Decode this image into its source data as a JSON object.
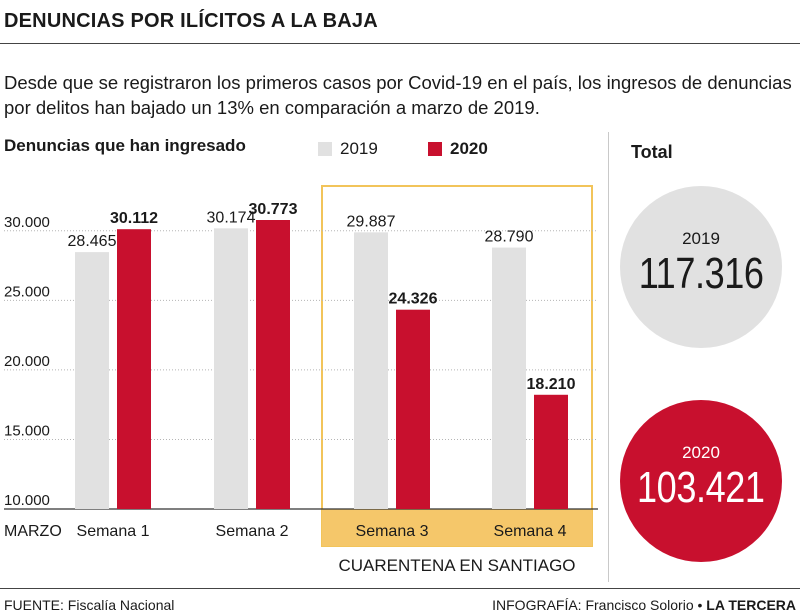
{
  "headline": "DENUNCIAS POR ILÍCITOS A LA BAJA",
  "subtitle": "Desde que se registraron los primeros casos por Covid-19 en el país, los ingresos de denuncias por delitos han bajado un 13% en comparación a marzo de 2019.",
  "chart_label": "Denuncias que han ingresado",
  "chart_data": {
    "type": "bar",
    "title": "Denuncias que han ingresado",
    "x_axis_label": "MARZO",
    "categories": [
      "Semana 1",
      "Semana 2",
      "Semana 3",
      "Semana 4"
    ],
    "series": [
      {
        "name": "2019",
        "values": [
          28465,
          30174,
          29887,
          28790
        ],
        "labels": [
          "28.465",
          "30.174",
          "29.887",
          "28.790"
        ]
      },
      {
        "name": "2020",
        "values": [
          30112,
          30773,
          24326,
          18210
        ],
        "labels": [
          "30.112",
          "30.773",
          "24.326",
          "18.210"
        ]
      }
    ],
    "ylim": [
      10000,
      30773
    ],
    "yticks": [
      10000,
      15000,
      20000,
      25000,
      30000
    ],
    "ytick_labels": [
      "10.000",
      "15.000",
      "20.000",
      "25.000",
      "30.000"
    ],
    "highlight": {
      "categories": [
        "Semana 3",
        "Semana 4"
      ],
      "label": "CUARENTENA EN SANTIAGO"
    },
    "legend_position": "top"
  },
  "colors": {
    "y2019": "#e1e1e1",
    "y2020": "#c8102e",
    "highlight": "#f2c45a",
    "highlight_fill": "#f5c76a"
  },
  "totals": {
    "label": "Total",
    "items": [
      {
        "year": "2019",
        "value": "117.316"
      },
      {
        "year": "2020",
        "value": "103.421"
      }
    ]
  },
  "footer": {
    "source": "FUENTE: Fiscalía Nacional",
    "credit": "INFOGRAFÍA: Francisco Solorio •",
    "brand": "LA TERCERA"
  }
}
